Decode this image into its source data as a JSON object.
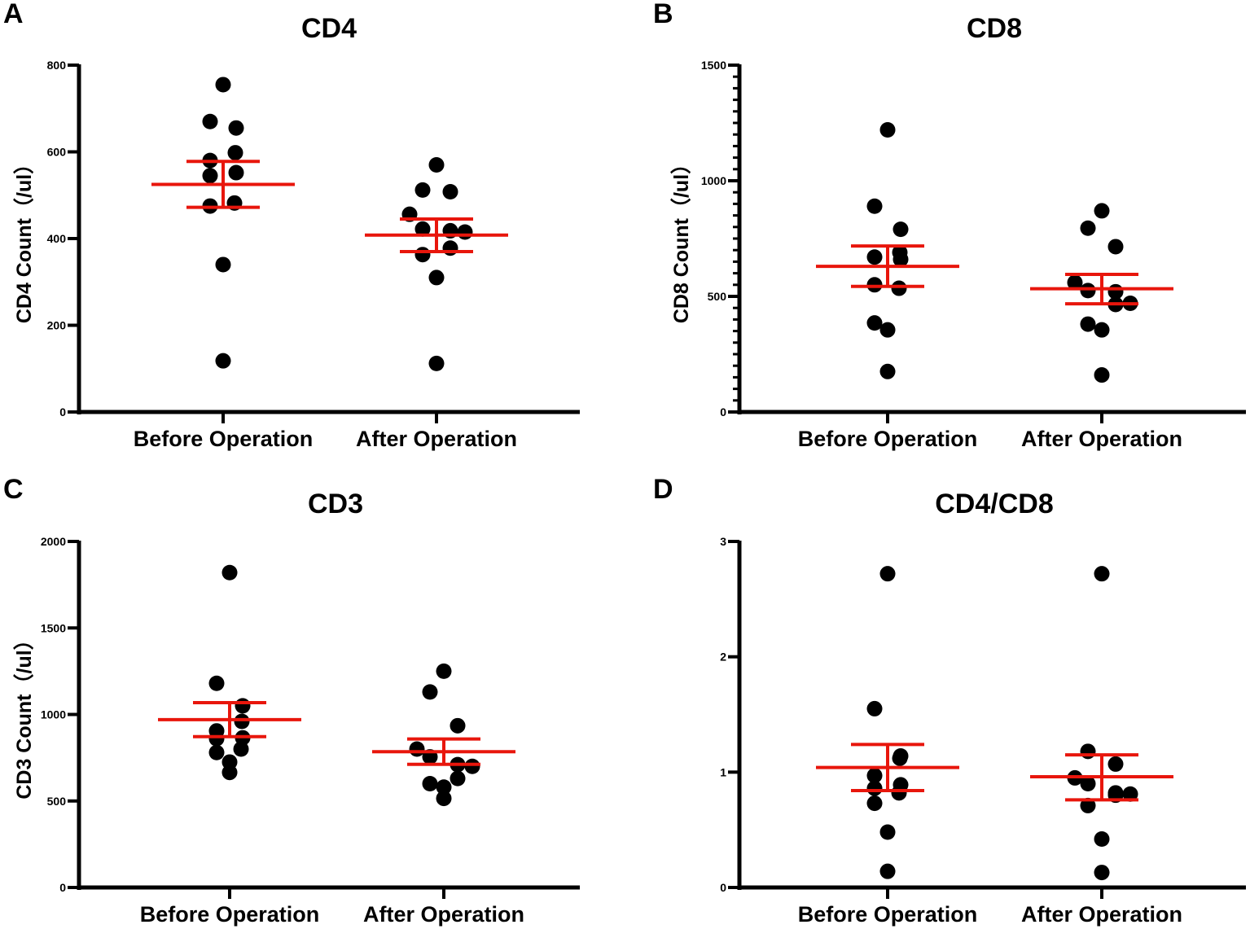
{
  "chart_data": [
    {
      "type": "scatter",
      "panel_label": "A",
      "title": "CD4",
      "ylabel": "CD4 Count（/ul）",
      "xlabel": "",
      "categories": [
        "Before Operation",
        "After Operation"
      ],
      "ylim": [
        0,
        800
      ],
      "yticks": [
        0,
        200,
        400,
        600,
        800
      ],
      "minor_ticks": false,
      "series": [
        {
          "name": "Before Operation",
          "values": [
            755,
            670,
            655,
            598,
            580,
            552,
            545,
            482,
            475,
            340,
            118
          ]
        },
        {
          "name": "After Operation",
          "values": [
            570,
            512,
            508,
            456,
            422,
            418,
            415,
            378,
            363,
            310,
            112
          ]
        }
      ],
      "summary": [
        {
          "mean": 525,
          "sem_low": 472,
          "sem_high": 578
        },
        {
          "mean": 408,
          "sem_low": 370,
          "sem_high": 445
        }
      ],
      "summary_color": "#e8160c",
      "point_color": "#000000"
    },
    {
      "type": "scatter",
      "panel_label": "B",
      "title": "CD8",
      "ylabel": "CD8 Count（/ul）",
      "xlabel": "",
      "categories": [
        "Before Operation",
        "After Operation"
      ],
      "ylim": [
        0,
        1500
      ],
      "yticks": [
        0,
        500,
        1000,
        1500
      ],
      "minor_ticks": true,
      "series": [
        {
          "name": "Before Operation",
          "values": [
            1220,
            890,
            790,
            690,
            670,
            660,
            550,
            535,
            385,
            355,
            175
          ]
        },
        {
          "name": "After Operation",
          "values": [
            870,
            795,
            715,
            560,
            525,
            520,
            470,
            465,
            380,
            355,
            160
          ]
        }
      ],
      "summary": [
        {
          "mean": 630,
          "sem_low": 543,
          "sem_high": 718
        },
        {
          "mean": 533,
          "sem_low": 468,
          "sem_high": 595
        }
      ],
      "summary_color": "#e8160c",
      "point_color": "#000000"
    },
    {
      "type": "scatter",
      "panel_label": "C",
      "title": "CD3",
      "ylabel": "CD3 Count（/ul）",
      "xlabel": "",
      "categories": [
        "Before Operation",
        "After Operation"
      ],
      "ylim": [
        0,
        2000
      ],
      "yticks": [
        0,
        500,
        1000,
        1500,
        2000
      ],
      "minor_ticks": false,
      "series": [
        {
          "name": "Before Operation",
          "values": [
            1820,
            1180,
            1050,
            960,
            905,
            865,
            860,
            800,
            780,
            725,
            665
          ]
        },
        {
          "name": "After Operation",
          "values": [
            1250,
            1130,
            935,
            800,
            755,
            710,
            700,
            630,
            600,
            580,
            515
          ]
        }
      ],
      "summary": [
        {
          "mean": 970,
          "sem_low": 872,
          "sem_high": 1068
        },
        {
          "mean": 785,
          "sem_low": 712,
          "sem_high": 858
        }
      ],
      "summary_color": "#e8160c",
      "point_color": "#000000"
    },
    {
      "type": "scatter",
      "panel_label": "D",
      "title": "CD4/CD8",
      "ylabel": "",
      "xlabel": "",
      "categories": [
        "Before Operation",
        "After Operation"
      ],
      "ylim": [
        0,
        3
      ],
      "yticks": [
        0,
        1,
        2,
        3
      ],
      "minor_ticks": false,
      "series": [
        {
          "name": "Before Operation",
          "values": [
            2.72,
            1.55,
            1.14,
            1.12,
            0.97,
            0.89,
            0.86,
            0.82,
            0.73,
            0.48,
            0.14
          ]
        },
        {
          "name": "After Operation",
          "values": [
            2.72,
            1.18,
            1.07,
            0.95,
            0.9,
            0.82,
            0.81,
            0.8,
            0.71,
            0.42,
            0.13
          ]
        }
      ],
      "summary": [
        {
          "mean": 1.04,
          "sem_low": 0.84,
          "sem_high": 1.24
        },
        {
          "mean": 0.96,
          "sem_low": 0.76,
          "sem_high": 1.15
        }
      ],
      "summary_color": "#e8160c",
      "point_color": "#000000"
    }
  ]
}
